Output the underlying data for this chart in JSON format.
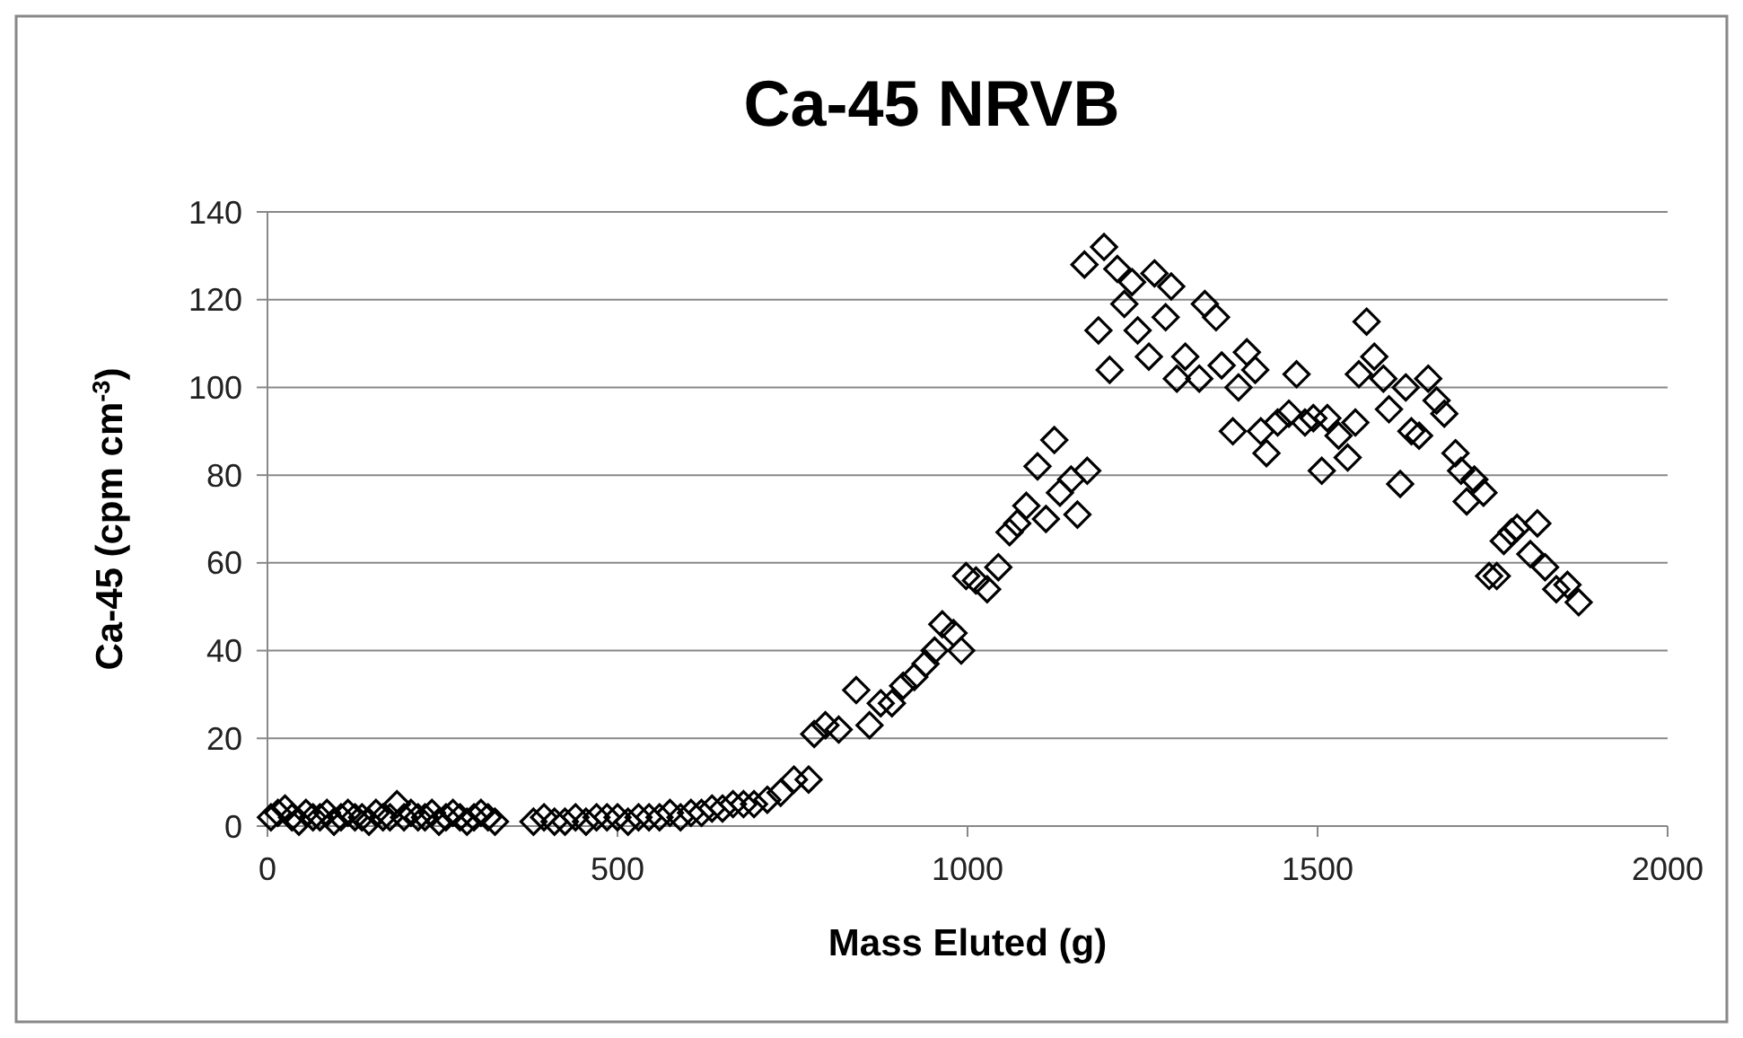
{
  "chart_data": {
    "type": "scatter",
    "title": "Ca-45 NRVB",
    "xlabel": "Mass Eluted (g)",
    "ylabel": "Ca-45 (cpm cm$^{-3}$)",
    "xlim": [
      0,
      2000
    ],
    "xticks": [
      0,
      500,
      1000,
      1500,
      2000
    ],
    "ylim": [
      0,
      140
    ],
    "yticks": [
      0,
      20,
      40,
      60,
      80,
      100,
      120,
      140
    ],
    "grid": "y",
    "marker": "diamond",
    "series": [
      {
        "color": "#000000",
        "x": [
          5,
          15,
          25,
          35,
          45,
          55,
          65,
          75,
          85,
          95,
          105,
          115,
          125,
          135,
          145,
          155,
          165,
          175,
          185,
          195,
          205,
          215,
          225,
          235,
          245,
          255,
          265,
          275,
          285,
          295,
          305,
          315,
          325,
          380,
          395,
          410,
          425,
          440,
          455,
          470,
          485,
          500,
          515,
          530,
          545,
          560,
          575,
          590,
          605,
          620,
          635,
          650,
          665,
          680,
          695,
          714,
          733,
          752,
          773,
          781,
          797,
          816,
          841,
          860,
          876,
          892,
          908,
          924,
          940,
          953,
          964,
          980,
          991,
          998,
          1012,
          1028,
          1044,
          1060,
          1071,
          1084,
          1100,
          1112,
          1124,
          1132,
          1148,
          1157,
          1171,
          1167,
          1187,
          1195,
          1203,
          1214,
          1224,
          1235,
          1243,
          1259,
          1267,
          1283,
          1291,
          1299,
          1311,
          1331,
          1339,
          1355,
          1363,
          1379,
          1387,
          1399,
          1411,
          1419,
          1427,
          1443,
          1459,
          1470,
          1482,
          1494,
          1506,
          1514,
          1530,
          1543,
          1554,
          1570,
          1559,
          1581,
          1594,
          1602,
          1618,
          1626,
          1634,
          1645,
          1658,
          1670,
          1681,
          1697,
          1705,
          1713,
          1724,
          1737,
          1745,
          1756,
          1766,
          1777,
          1785,
          1804,
          1814,
          1825,
          1841,
          1857,
          1873
        ],
        "values": [
          2,
          3,
          4,
          2,
          1,
          3,
          2,
          2,
          3,
          1,
          2,
          3,
          2,
          2,
          1,
          3,
          2,
          2,
          5,
          2,
          3,
          2,
          2,
          3,
          1,
          2,
          3,
          2,
          1,
          2,
          3,
          2,
          1,
          1,
          2,
          1,
          1,
          2,
          1,
          2,
          2,
          2,
          1,
          2,
          2,
          2,
          3,
          2,
          3,
          3,
          4,
          4,
          5,
          5,
          5,
          6,
          7.6,
          10.6,
          10.6,
          21,
          23,
          22,
          31,
          23,
          28,
          28,
          32,
          34,
          37,
          40,
          46,
          44,
          40,
          57,
          56,
          54,
          59,
          67,
          69,
          73,
          82,
          70,
          88,
          76,
          79,
          71,
          81,
          128,
          113,
          132,
          104,
          127,
          119,
          124,
          113,
          107,
          126,
          116,
          123,
          102,
          107,
          102,
          119,
          116,
          105,
          90,
          100,
          108,
          104,
          90,
          85,
          92,
          94,
          103,
          92,
          93,
          81,
          93,
          89,
          84,
          92,
          115,
          103,
          107,
          102,
          95,
          78,
          100,
          90,
          89,
          102,
          97,
          94,
          85,
          81,
          74,
          79,
          76,
          57,
          57,
          65,
          67,
          68,
          62,
          69,
          59,
          54,
          55,
          51
        ]
      }
    ]
  }
}
